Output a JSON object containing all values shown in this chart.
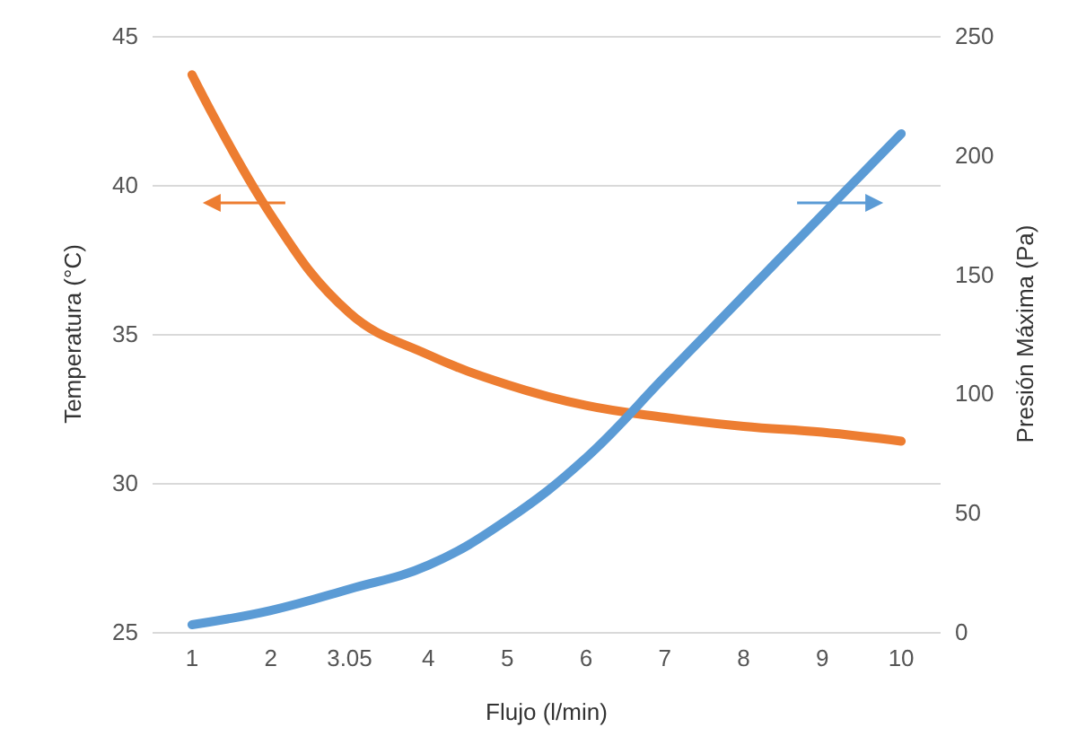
{
  "chart_data": {
    "type": "line",
    "xlabel": "Flujo (l/min)",
    "ylabel": "Temperatura (°C)",
    "y2label": "Presión Máxima (Pa)",
    "categories": [
      "1",
      "2",
      "3.05",
      "4",
      "5",
      "6",
      "7",
      "8",
      "9",
      "10"
    ],
    "series": [
      {
        "color": "#ed7d31",
        "values": [
          43.7,
          39,
          35.7,
          34.3,
          33.3,
          32.6,
          32.2,
          31.9,
          31.7,
          31.4
        ]
      },
      {
        "color": "#5b9bd5",
        "axis": "y2",
        "values": [
          3,
          9,
          18,
          28,
          47,
          73,
          107,
          141,
          175,
          209
        ]
      }
    ],
    "ylim": [
      25,
      45
    ],
    "yticks": [
      25,
      30,
      35,
      40,
      45
    ],
    "y2lim": [
      0,
      250
    ],
    "y2ticks": [
      0,
      50,
      100,
      150,
      200,
      250
    ],
    "grid": "y",
    "marker": "none",
    "line_style": "solid"
  }
}
